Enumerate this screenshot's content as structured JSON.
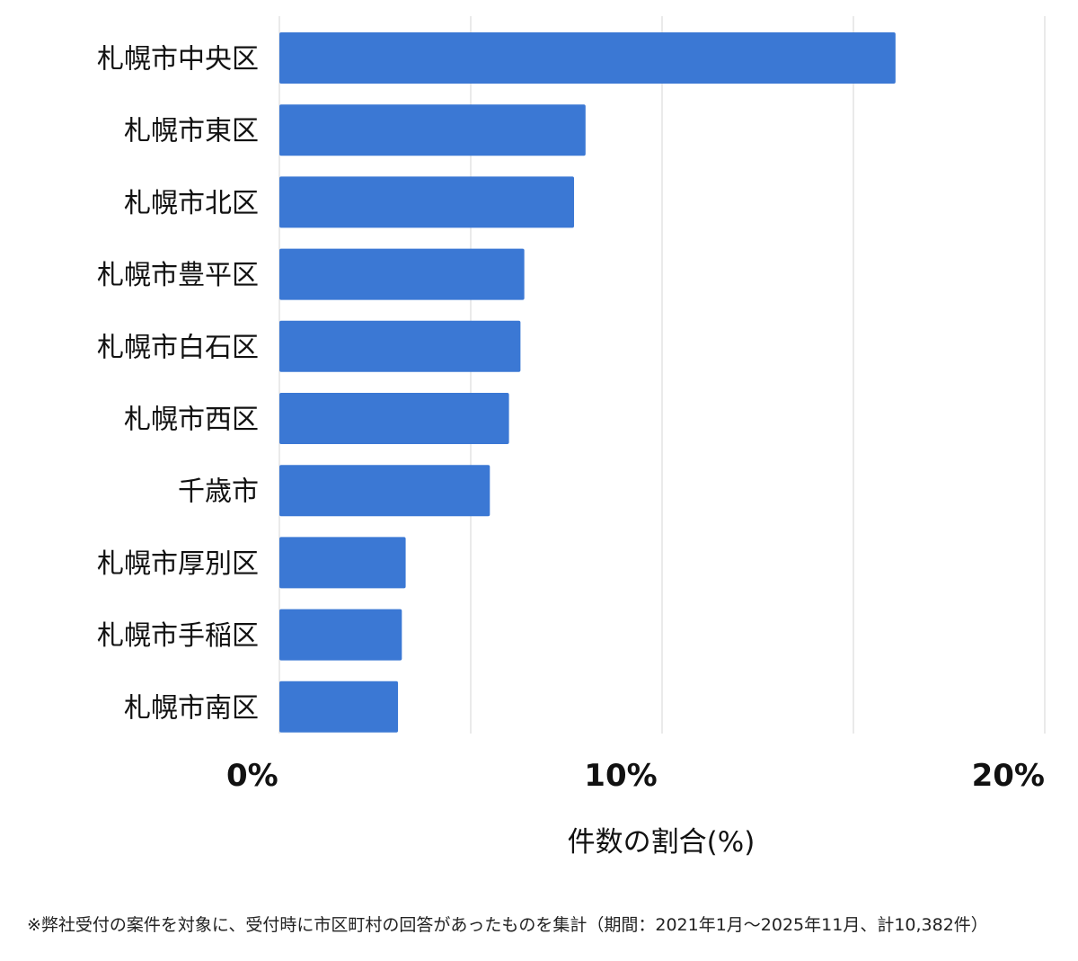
{
  "chart_data": {
    "type": "bar",
    "orientation": "horizontal",
    "categories": [
      "札幌市中央区",
      "札幌市東区",
      "札幌市北区",
      "札幌市豊平区",
      "札幌市白石区",
      "札幌市西区",
      "千歳市",
      "札幌市厚別区",
      "札幌市手稲区",
      "札幌市南区"
    ],
    "values": [
      16.1,
      8.0,
      7.7,
      6.4,
      6.3,
      6.0,
      5.5,
      3.3,
      3.2,
      3.1
    ],
    "xlim": [
      0,
      20
    ],
    "xticks": [
      0,
      10,
      20
    ],
    "xtick_labels": [
      "0%",
      "10%",
      "20%"
    ],
    "xlabel": "件数の割合(%)",
    "ylabel": "",
    "title": "",
    "grid": true,
    "bar_color": "#3b78d4",
    "grid_color": "#dcdcdc"
  },
  "footnote": "※弊社受付の案件を対象に、受付時に市区町村の回答があったものを集計（期間：2021年1月～2025年11月、計10,382件）"
}
